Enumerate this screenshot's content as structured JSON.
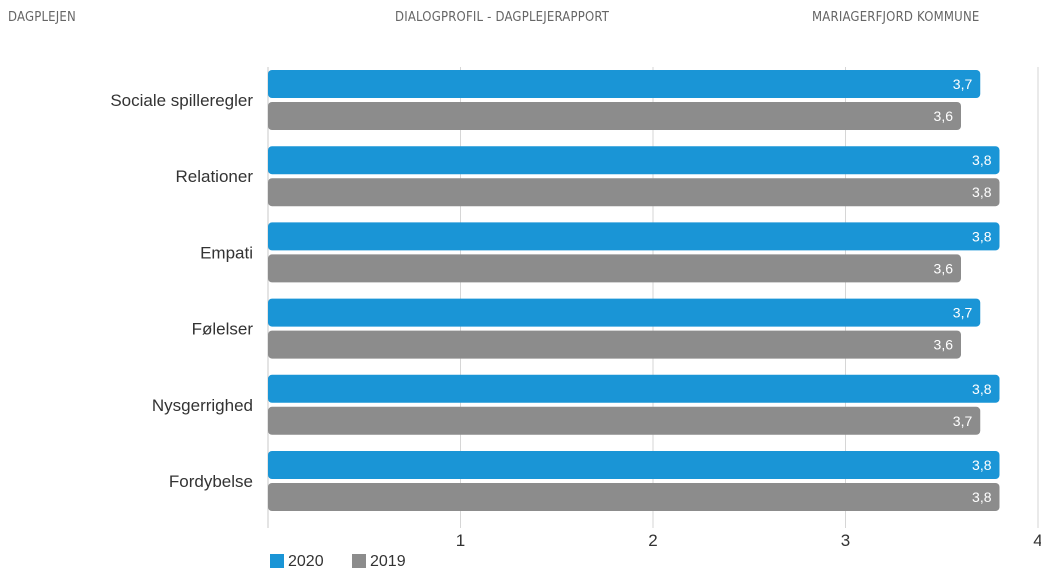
{
  "header": {
    "left": "DAGPLEJEN",
    "center": "DIALOGPROFIL - DAGPLEJERAPPORT",
    "right": "MARIAGERFJORD KOMMUNE"
  },
  "chart_data": {
    "type": "bar",
    "orientation": "horizontal",
    "categories": [
      "Sociale spilleregler",
      "Relationer",
      "Empati",
      "Følelser",
      "Nysgerrighed",
      "Fordybelse"
    ],
    "series": [
      {
        "name": "2020",
        "values": [
          3.7,
          3.8,
          3.8,
          3.7,
          3.8,
          3.8
        ],
        "labels": [
          "3,7",
          "3,8",
          "3,8",
          "3,7",
          "3,8",
          "3,8"
        ],
        "color": "#1a95d6"
      },
      {
        "name": "2019",
        "values": [
          3.6,
          3.8,
          3.6,
          3.6,
          3.7,
          3.8
        ],
        "labels": [
          "3,6",
          "3,8",
          "3,6",
          "3,6",
          "3,7",
          "3,8"
        ],
        "color": "#8c8c8c"
      }
    ],
    "xlim": [
      0,
      4
    ],
    "xticks": [
      1,
      2,
      3,
      4
    ],
    "title": "",
    "xlabel": "",
    "ylabel": "",
    "grid": true,
    "legend": "bottom-left"
  }
}
